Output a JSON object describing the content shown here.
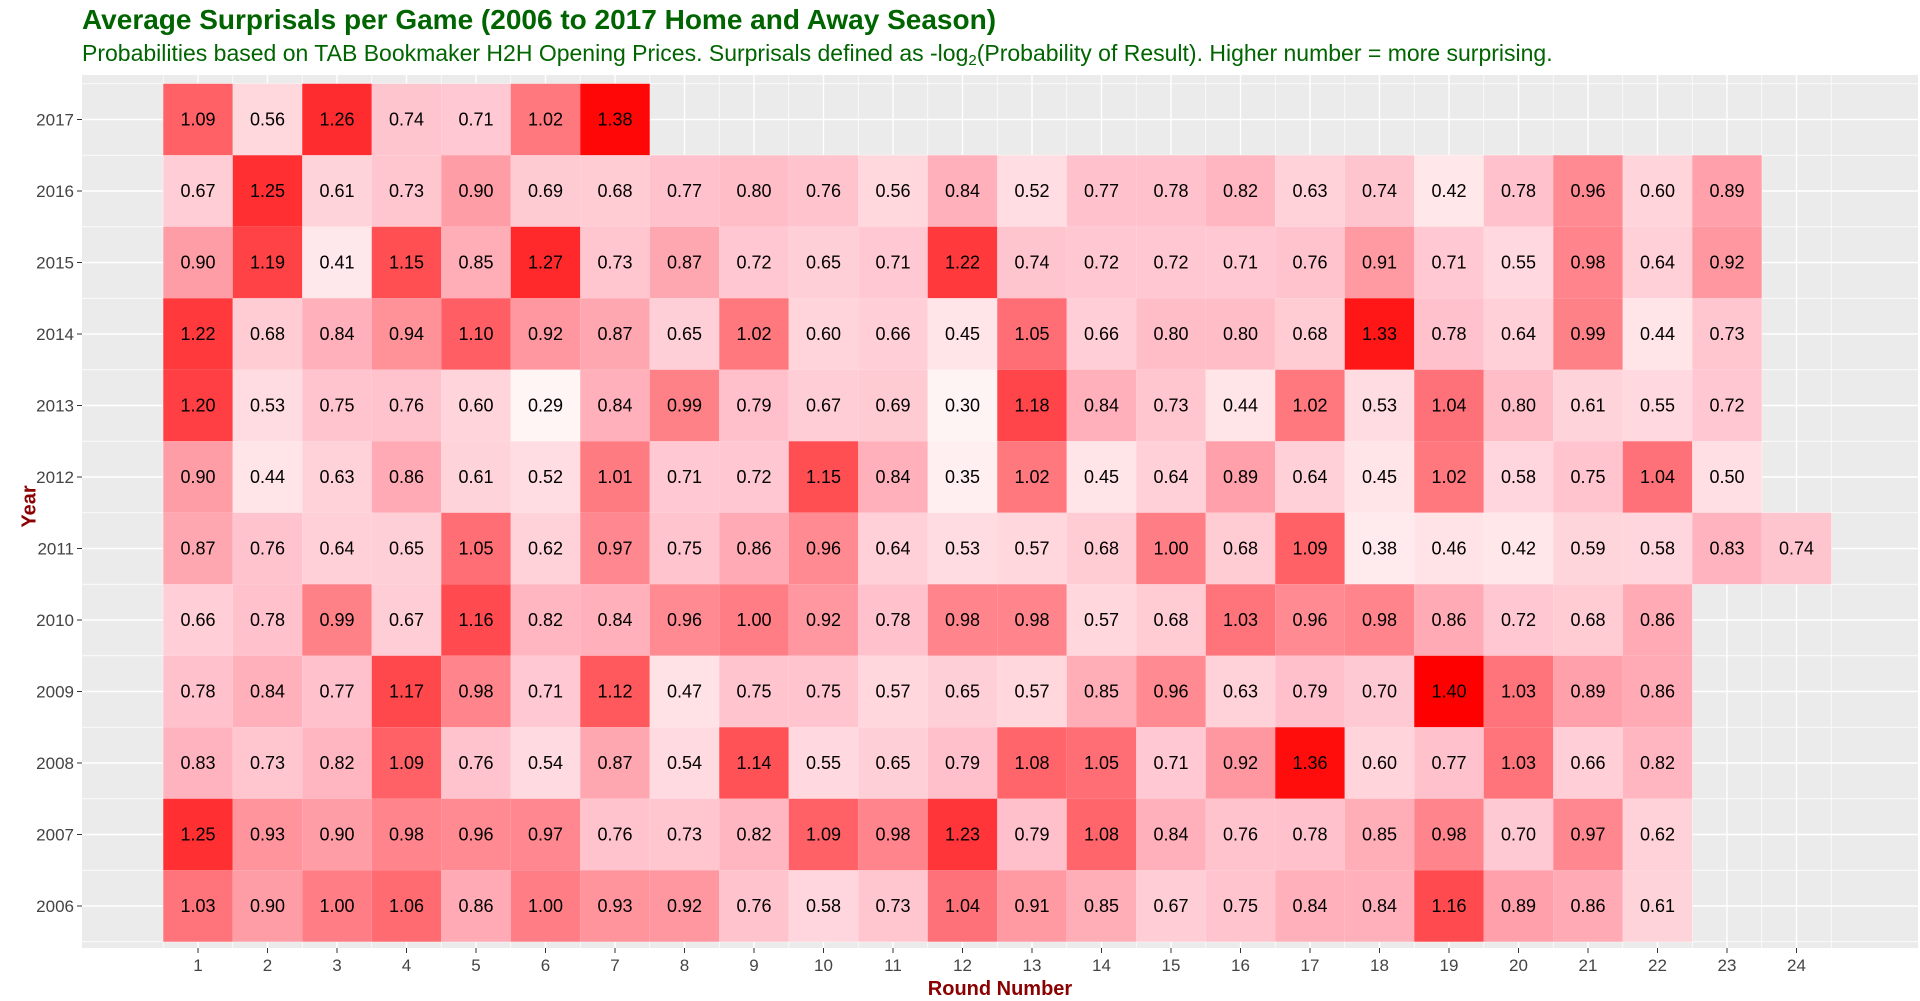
{
  "title": "Average Surprisals per Game (2006 to 2017 Home and Away Season)",
  "subtitle_main": "Probabilities based on TAB Bookmaker H2H Opening Prices. Surprisals defined as -log",
  "subtitle_sub": "2",
  "subtitle_rest": "(Probability of Result). Higher number = more surprising.",
  "colors": {
    "title": "#006400",
    "axis_title": "#8B0000",
    "panel": "#EBEBEB",
    "grid": "#FFFFFF",
    "low": "#FFF5F5",
    "mid": "#FFC0CB",
    "high": "#FF0000"
  },
  "chart_data": {
    "type": "heatmap",
    "x_label": "Round Number",
    "y_label": "Year",
    "x": [
      "1",
      "2",
      "3",
      "4",
      "5",
      "6",
      "7",
      "8",
      "9",
      "10",
      "11",
      "12",
      "13",
      "14",
      "15",
      "16",
      "17",
      "18",
      "19",
      "20",
      "21",
      "22",
      "23",
      "24"
    ],
    "y": [
      "2017",
      "2016",
      "2015",
      "2014",
      "2013",
      "2012",
      "2011",
      "2010",
      "2009",
      "2008",
      "2007",
      "2006"
    ],
    "value_range": [
      0.29,
      1.4
    ],
    "grid": true,
    "values": {
      "2017": [
        1.09,
        0.56,
        1.26,
        0.74,
        0.71,
        1.02,
        1.38
      ],
      "2016": [
        0.67,
        1.25,
        0.61,
        0.73,
        0.9,
        0.69,
        0.68,
        0.77,
        0.8,
        0.76,
        0.56,
        0.84,
        0.52,
        0.77,
        0.78,
        0.82,
        0.63,
        0.74,
        0.42,
        0.78,
        0.96,
        0.6,
        0.89
      ],
      "2015": [
        0.9,
        1.19,
        0.41,
        1.15,
        0.85,
        1.27,
        0.73,
        0.87,
        0.72,
        0.65,
        0.71,
        1.22,
        0.74,
        0.72,
        0.72,
        0.71,
        0.76,
        0.91,
        0.71,
        0.55,
        0.98,
        0.64,
        0.92
      ],
      "2014": [
        1.22,
        0.68,
        0.84,
        0.94,
        1.1,
        0.92,
        0.87,
        0.65,
        1.02,
        0.6,
        0.66,
        0.45,
        1.05,
        0.66,
        0.8,
        0.8,
        0.68,
        1.33,
        0.78,
        0.64,
        0.99,
        0.44,
        0.73
      ],
      "2013": [
        1.2,
        0.53,
        0.75,
        0.76,
        0.6,
        0.29,
        0.84,
        0.99,
        0.79,
        0.67,
        0.69,
        0.3,
        1.18,
        0.84,
        0.73,
        0.44,
        1.02,
        0.53,
        1.04,
        0.8,
        0.61,
        0.55,
        0.72
      ],
      "2012": [
        0.9,
        0.44,
        0.63,
        0.86,
        0.61,
        0.52,
        1.01,
        0.71,
        0.72,
        1.15,
        0.84,
        0.35,
        1.02,
        0.45,
        0.64,
        0.89,
        0.64,
        0.45,
        1.02,
        0.58,
        0.75,
        1.04,
        0.5
      ],
      "2011": [
        0.87,
        0.76,
        0.64,
        0.65,
        1.05,
        0.62,
        0.97,
        0.75,
        0.86,
        0.96,
        0.64,
        0.53,
        0.57,
        0.68,
        1.0,
        0.68,
        1.09,
        0.38,
        0.46,
        0.42,
        0.59,
        0.58,
        0.83,
        0.74
      ],
      "2010": [
        0.66,
        0.78,
        0.99,
        0.67,
        1.16,
        0.82,
        0.84,
        0.96,
        1.0,
        0.92,
        0.78,
        0.98,
        0.98,
        0.57,
        0.68,
        1.03,
        0.96,
        0.98,
        0.86,
        0.72,
        0.68,
        0.86
      ],
      "2009": [
        0.78,
        0.84,
        0.77,
        1.17,
        0.98,
        0.71,
        1.12,
        0.47,
        0.75,
        0.75,
        0.57,
        0.65,
        0.57,
        0.85,
        0.96,
        0.63,
        0.79,
        0.7,
        1.4,
        1.03,
        0.89,
        0.86
      ],
      "2008": [
        0.83,
        0.73,
        0.82,
        1.09,
        0.76,
        0.54,
        0.87,
        0.54,
        1.14,
        0.55,
        0.65,
        0.79,
        1.08,
        1.05,
        0.71,
        0.92,
        1.36,
        0.6,
        0.77,
        1.03,
        0.66,
        0.82
      ],
      "2007": [
        1.25,
        0.93,
        0.9,
        0.98,
        0.96,
        0.97,
        0.76,
        0.73,
        0.82,
        1.09,
        0.98,
        1.23,
        0.79,
        1.08,
        0.84,
        0.76,
        0.78,
        0.85,
        0.98,
        0.7,
        0.97,
        0.62
      ],
      "2006": [
        1.03,
        0.9,
        1.0,
        1.06,
        0.86,
        1.0,
        0.93,
        0.92,
        0.76,
        0.58,
        0.73,
        1.04,
        0.91,
        0.85,
        0.67,
        0.75,
        0.84,
        0.84,
        1.16,
        0.89,
        0.86,
        0.61
      ]
    }
  }
}
